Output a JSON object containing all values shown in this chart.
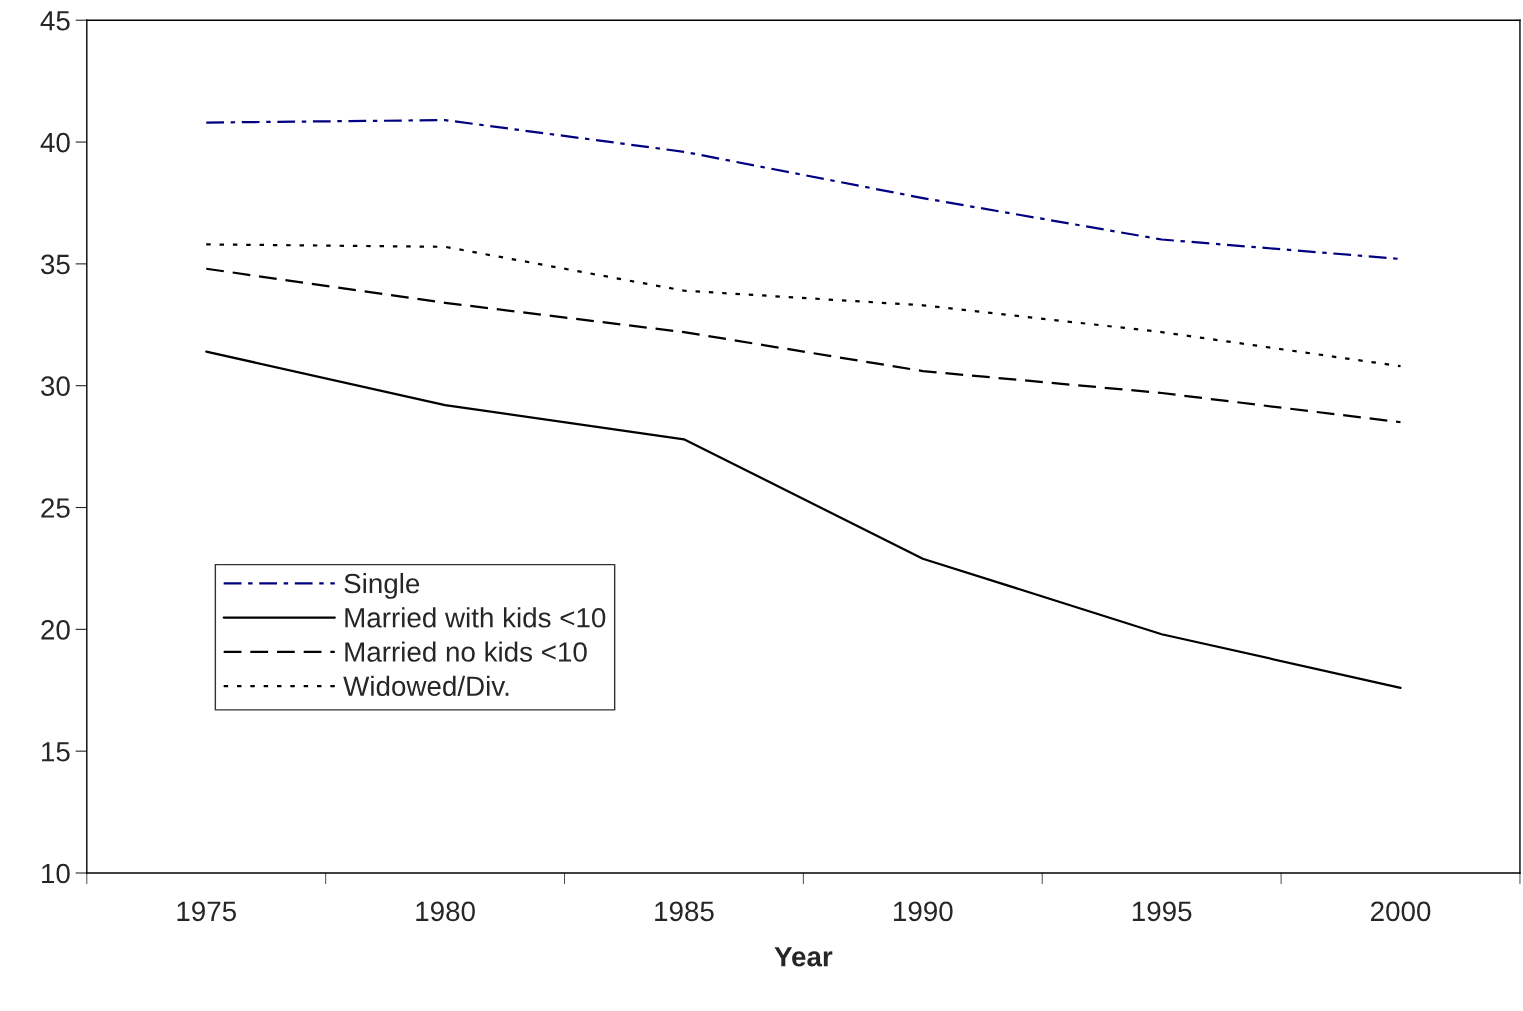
{
  "chart_data": {
    "type": "line",
    "xlabel": "Year",
    "categories": [
      "1975",
      "1980",
      "1985",
      "1990",
      "1995",
      "2000"
    ],
    "series": [
      {
        "name": "Single",
        "color": "#000080",
        "line_style": "dashdot",
        "values": [
          40.8,
          40.9,
          39.6,
          37.7,
          36.0,
          35.2
        ]
      },
      {
        "name": "Married with kids <10",
        "color": "#000000",
        "line_style": "solid",
        "values": [
          31.4,
          29.2,
          27.8,
          22.9,
          19.8,
          17.6
        ]
      },
      {
        "name": "Married no kids <10",
        "color": "#000000",
        "line_style": "dashed",
        "values": [
          34.8,
          33.4,
          32.2,
          30.6,
          29.7,
          28.5
        ]
      },
      {
        "name": "Widowed/Div.",
        "color": "#000000",
        "line_style": "dotted",
        "values": [
          35.8,
          35.7,
          33.9,
          33.3,
          32.2,
          30.8
        ]
      }
    ],
    "ylim": [
      10,
      45
    ],
    "yticks": [
      10,
      15,
      20,
      25,
      30,
      35,
      40,
      45
    ],
    "grid": false,
    "legend": "lower left",
    "marker": "none"
  }
}
